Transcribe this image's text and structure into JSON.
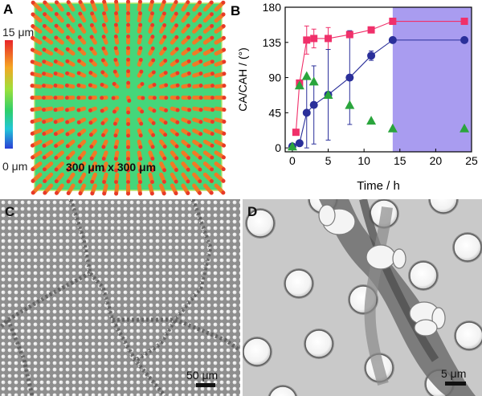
{
  "panels": {
    "a": {
      "letter": "A",
      "colorbar_top": "15 μm",
      "colorbar_bottom": "0 μm",
      "area_label": "300 μm x 300 μm"
    },
    "b": {
      "letter": "B"
    },
    "c": {
      "letter": "C",
      "scalebar": "50 μm"
    },
    "d": {
      "letter": "D",
      "scalebar": "5 μm"
    }
  },
  "chart_data": {
    "type": "scatter",
    "xlabel": "Time / h",
    "ylabel": "CA/CAH / (°)",
    "xlim": [
      -1,
      25
    ],
    "ylim": [
      -5,
      180
    ],
    "xticks": [
      0,
      5,
      10,
      15,
      20,
      25
    ],
    "yticks": [
      0,
      45,
      90,
      135,
      180
    ],
    "shaded_region": [
      14,
      25
    ],
    "series": [
      {
        "marker": "square",
        "color": "#f0306a",
        "connected": true,
        "x": [
          0.5,
          1,
          2,
          3,
          5,
          8,
          11,
          14,
          24
        ],
        "y": [
          20,
          83,
          138,
          140,
          140,
          145,
          151,
          162,
          162
        ],
        "err": [
          0,
          0,
          18,
          12,
          14,
          0,
          0,
          0,
          0
        ]
      },
      {
        "marker": "circle",
        "color": "#2a2f9a",
        "connected": true,
        "x": [
          0,
          1,
          2,
          3,
          5,
          8,
          11,
          14,
          24
        ],
        "y": [
          2,
          6,
          45,
          55,
          68,
          90,
          118,
          138,
          138
        ],
        "err": [
          0,
          0,
          45,
          50,
          58,
          60,
          6,
          0,
          0
        ]
      },
      {
        "marker": "triangle",
        "color": "#2aa53c",
        "connected": false,
        "x": [
          0,
          1,
          2,
          3,
          5,
          8,
          11,
          14,
          24
        ],
        "y": [
          2,
          80,
          92,
          85,
          68,
          55,
          35,
          25,
          25
        ],
        "err": [
          0,
          0,
          0,
          0,
          0,
          0,
          0,
          0,
          0
        ]
      }
    ]
  }
}
